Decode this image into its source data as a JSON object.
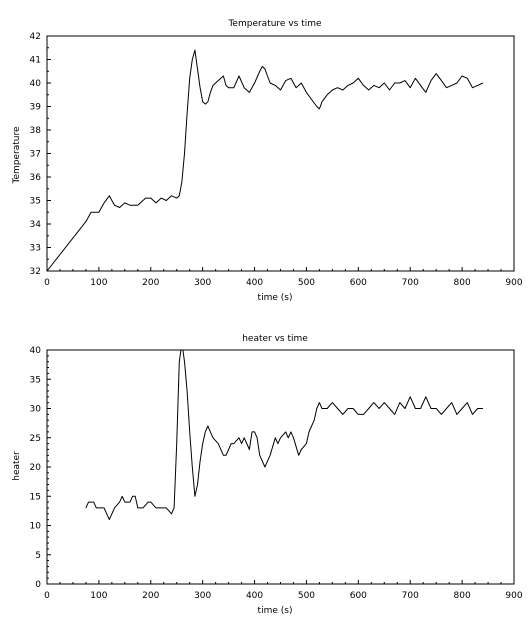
{
  "chart_data": [
    {
      "type": "line",
      "title": "Temperature vs time",
      "xlabel": "time (s)",
      "ylabel": "Temperature",
      "xlim": [
        0,
        900
      ],
      "ylim": [
        32,
        42
      ],
      "xticks": [
        0,
        100,
        200,
        300,
        400,
        500,
        600,
        700,
        800,
        900
      ],
      "yticks": [
        32,
        33,
        34,
        35,
        36,
        37,
        38,
        39,
        40,
        41,
        42
      ],
      "grid": false,
      "series": [
        {
          "x": [
            0,
            75,
            85,
            100,
            110,
            120,
            130,
            140,
            150,
            160,
            175,
            190,
            200,
            210,
            220,
            230,
            240,
            250,
            255,
            260,
            265,
            270,
            275,
            280,
            285,
            290,
            295,
            300,
            305,
            310,
            315,
            320,
            330,
            340,
            345,
            350,
            360,
            370,
            380,
            390,
            400,
            410,
            415,
            420,
            425,
            430,
            440,
            450,
            460,
            470,
            480,
            490,
            500,
            510,
            520,
            525,
            530,
            540,
            550,
            560,
            570,
            580,
            590,
            600,
            610,
            620,
            630,
            640,
            650,
            660,
            670,
            680,
            690,
            700,
            710,
            720,
            730,
            740,
            750,
            760,
            770,
            780,
            790,
            800,
            810,
            820,
            830,
            840
          ],
          "y": [
            32.0,
            34.1,
            34.5,
            34.5,
            34.9,
            35.2,
            34.8,
            34.7,
            34.9,
            34.8,
            34.8,
            35.1,
            35.1,
            34.9,
            35.1,
            35.0,
            35.2,
            35.1,
            35.2,
            35.8,
            37.0,
            38.7,
            40.2,
            41.0,
            41.4,
            40.6,
            39.8,
            39.2,
            39.1,
            39.2,
            39.6,
            39.9,
            40.1,
            40.3,
            39.9,
            39.8,
            39.8,
            40.3,
            39.8,
            39.6,
            40.0,
            40.5,
            40.7,
            40.6,
            40.3,
            40.0,
            39.9,
            39.7,
            40.1,
            40.2,
            39.8,
            40.0,
            39.6,
            39.3,
            39.0,
            38.9,
            39.2,
            39.5,
            39.7,
            39.8,
            39.7,
            39.9,
            40.0,
            40.2,
            39.9,
            39.7,
            39.9,
            39.8,
            40.0,
            39.7,
            40.0,
            40.0,
            40.1,
            39.8,
            40.2,
            39.9,
            39.6,
            40.1,
            40.4,
            40.1,
            39.8,
            39.9,
            40.0,
            40.3,
            40.2,
            39.8,
            39.9,
            40.0
          ]
        }
      ]
    },
    {
      "type": "line",
      "title": "heater vs time",
      "xlabel": "time (s)",
      "ylabel": "heater",
      "xlim": [
        0,
        900
      ],
      "ylim": [
        0,
        40
      ],
      "xticks": [
        0,
        100,
        200,
        300,
        400,
        500,
        600,
        700,
        800,
        900
      ],
      "yticks": [
        0,
        5,
        10,
        15,
        20,
        25,
        30,
        35,
        40
      ],
      "grid": false,
      "series": [
        {
          "x": [
            75,
            80,
            90,
            95,
            105,
            110,
            115,
            120,
            125,
            130,
            140,
            145,
            150,
            160,
            165,
            170,
            175,
            185,
            195,
            200,
            210,
            220,
            230,
            240,
            245,
            250,
            255,
            258,
            262,
            265,
            270,
            275,
            280,
            285,
            290,
            295,
            300,
            305,
            310,
            315,
            320,
            330,
            340,
            345,
            350,
            355,
            360,
            370,
            375,
            380,
            390,
            395,
            400,
            405,
            410,
            415,
            420,
            425,
            430,
            440,
            445,
            450,
            460,
            465,
            470,
            475,
            485,
            490,
            500,
            505,
            510,
            515,
            520,
            525,
            530,
            540,
            550,
            560,
            570,
            580,
            590,
            600,
            610,
            620,
            630,
            640,
            650,
            660,
            670,
            680,
            690,
            700,
            710,
            720,
            730,
            740,
            750,
            760,
            770,
            780,
            790,
            800,
            810,
            820,
            830,
            840
          ],
          "y": [
            13,
            14,
            14,
            13,
            13,
            13,
            12,
            11,
            12,
            13,
            14,
            15,
            14,
            14,
            15,
            15,
            13,
            13,
            14,
            14,
            13,
            13,
            13,
            12,
            13,
            24,
            38,
            40,
            40,
            38,
            33,
            26,
            20,
            15,
            17,
            21,
            24,
            26,
            27,
            26,
            25,
            24,
            22,
            22,
            23,
            24,
            24,
            25,
            24,
            25,
            23,
            26,
            26,
            25,
            22,
            21,
            20,
            21,
            22,
            25,
            24,
            25,
            26,
            25,
            26,
            25,
            22,
            23,
            24,
            26,
            27,
            28,
            30,
            31,
            30,
            30,
            31,
            30,
            29,
            30,
            30,
            29,
            29,
            30,
            31,
            30,
            31,
            30,
            29,
            31,
            30,
            32,
            30,
            30,
            32,
            30,
            30,
            29,
            30,
            31,
            29,
            30,
            31,
            29,
            30,
            30
          ]
        }
      ]
    }
  ]
}
